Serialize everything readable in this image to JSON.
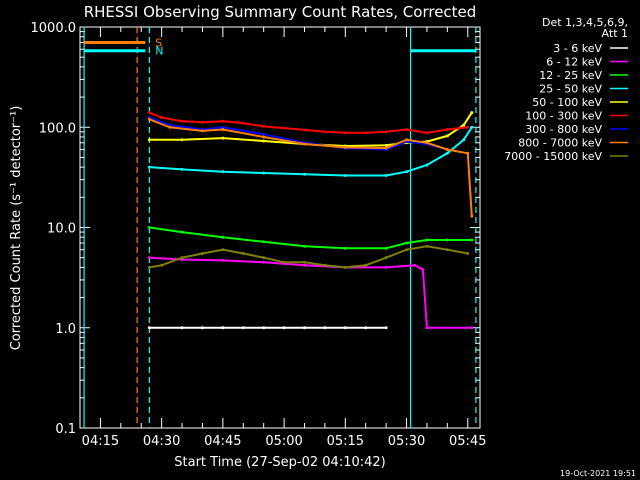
{
  "chart_data": {
    "type": "line",
    "title": "RHESSI Observing Summary Count Rates, Corrected",
    "xlabel": "Start Time (27-Sep-02 04:10:42)",
    "ylabel": "Corrected Count Rate (s⁻¹ detector⁻¹)",
    "ylim": [
      0.1,
      1000
    ],
    "yscale": "log",
    "xlim": [
      "04:10",
      "05:48"
    ],
    "grid": false,
    "x_ticks": [
      "04:15",
      "04:30",
      "04:45",
      "05:00",
      "05:15",
      "05:30",
      "05:45"
    ],
    "y_ticks": [
      "1000.0",
      "100.0",
      "10.0",
      "1.0",
      "0.1"
    ],
    "legend_header": [
      "Det 1,3,4,5,6,9,",
      "Att 1"
    ],
    "legend_placement": "right",
    "series": [
      {
        "name": "3 - 6 keV",
        "color": "#ffffff",
        "x": [
          "04:27",
          "04:35",
          "04:40",
          "04:45",
          "04:50",
          "04:55",
          "05:00",
          "05:05",
          "05:10",
          "05:15",
          "05:20",
          "05:25"
        ],
        "y": [
          1.0,
          1.0,
          1.0,
          1.0,
          1.0,
          1.0,
          1.0,
          1.0,
          1.0,
          1.0,
          1.0,
          1.0
        ]
      },
      {
        "name": "6 - 12 keV",
        "color": "#ff00ff",
        "x": [
          "04:27",
          "04:35",
          "04:45",
          "04:55",
          "05:05",
          "05:15",
          "05:25",
          "05:32",
          "05:34",
          "05:35",
          "05:46"
        ],
        "y": [
          5.0,
          4.8,
          4.7,
          4.5,
          4.2,
          4.0,
          4.0,
          4.2,
          3.8,
          1.0,
          1.0
        ]
      },
      {
        "name": "12 - 25 keV",
        "color": "#00ff00",
        "x": [
          "04:27",
          "04:35",
          "04:45",
          "04:55",
          "05:05",
          "05:15",
          "05:25",
          "05:30",
          "05:35",
          "05:40",
          "05:46"
        ],
        "y": [
          10.0,
          9.0,
          8.0,
          7.2,
          6.5,
          6.2,
          6.2,
          7.0,
          7.5,
          7.5,
          7.5
        ]
      },
      {
        "name": "25 - 50 keV",
        "color": "#00ffff",
        "x": [
          "04:27",
          "04:35",
          "04:45",
          "04:55",
          "05:05",
          "05:15",
          "05:25",
          "05:30",
          "05:35",
          "05:40",
          "05:44",
          "05:46"
        ],
        "y": [
          40,
          38,
          36,
          35,
          34,
          33,
          33,
          36,
          42,
          55,
          75,
          100
        ]
      },
      {
        "name": "50 - 100 keV",
        "color": "#ffff00",
        "x": [
          "04:27",
          "04:35",
          "04:45",
          "04:55",
          "05:05",
          "05:15",
          "05:25",
          "05:30",
          "05:35",
          "05:40",
          "05:44",
          "05:46"
        ],
        "y": [
          75,
          75,
          78,
          73,
          68,
          65,
          66,
          70,
          72,
          82,
          105,
          140
        ]
      },
      {
        "name": "100 - 300 keV",
        "color": "#ff0000",
        "x": [
          "04:27",
          "04:30",
          "04:35",
          "04:40",
          "04:45",
          "04:50",
          "04:55",
          "05:00",
          "05:05",
          "05:10",
          "05:15",
          "05:20",
          "05:25",
          "05:30",
          "05:35",
          "05:40",
          "05:45"
        ],
        "y": [
          140,
          125,
          115,
          112,
          115,
          110,
          102,
          98,
          94,
          90,
          88,
          88,
          90,
          95,
          88,
          95,
          100
        ]
      },
      {
        "name": "300 - 800 keV",
        "color": "#0000ff",
        "x": [
          "04:27",
          "04:32",
          "04:40",
          "04:45",
          "04:55",
          "05:05",
          "05:15",
          "05:25",
          "05:30",
          "05:35",
          "05:40",
          "05:45"
        ],
        "y": [
          125,
          105,
          95,
          100,
          85,
          70,
          62,
          60,
          72,
          68,
          60,
          55
        ]
      },
      {
        "name": "800 - 7000 keV",
        "color": "#ff8000",
        "x": [
          "04:27",
          "04:32",
          "04:40",
          "04:45",
          "04:55",
          "05:05",
          "05:15",
          "05:25",
          "05:30",
          "05:35",
          "05:40",
          "05:45",
          "05:46"
        ],
        "y": [
          120,
          100,
          92,
          95,
          80,
          68,
          63,
          62,
          75,
          70,
          60,
          55,
          13
        ]
      },
      {
        "name": "7000 - 15000 keV",
        "color": "#808000",
        "x": [
          "04:27",
          "04:30",
          "04:35",
          "04:40",
          "04:45",
          "04:50",
          "04:55",
          "05:00",
          "05:05",
          "05:10",
          "05:15",
          "05:20",
          "05:25",
          "05:30",
          "05:35",
          "05:40",
          "05:45"
        ],
        "y": [
          4.0,
          4.2,
          5.0,
          5.5,
          6.0,
          5.5,
          5.0,
          4.5,
          4.5,
          4.2,
          4.0,
          4.2,
          5.0,
          6.0,
          6.5,
          6.0,
          5.5
        ]
      }
    ],
    "flag_bars": [
      {
        "label": "S",
        "color": "#ff8000",
        "x_start": "04:11",
        "x_end": "04:26",
        "y": 700
      },
      {
        "label": "N",
        "color": "#00ffff",
        "x_start": "04:11",
        "x_end": "04:26",
        "y": 580
      },
      {
        "label": "",
        "color": "#00ffff",
        "x_start": "05:31",
        "x_end": "05:47",
        "y": 580
      }
    ],
    "markers": [
      {
        "color": "#ff8000",
        "style": "dashed",
        "x": "04:24"
      },
      {
        "color": "#00ffff",
        "style": "dashed",
        "x": "04:27"
      },
      {
        "color": "#00ffff",
        "style": "solid",
        "x": "04:11"
      },
      {
        "color": "#00ffff",
        "style": "solid",
        "x": "05:31"
      },
      {
        "color": "#00ffff",
        "style": "dashed",
        "x": "05:47"
      }
    ]
  },
  "footer": {
    "timestamp": "19-Oct-2021 19:51"
  }
}
